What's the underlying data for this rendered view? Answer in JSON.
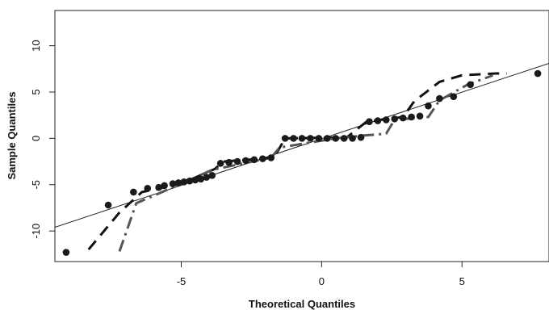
{
  "chart_data": {
    "type": "scatter",
    "title": "",
    "xlabel": "Theoretical Quantiles",
    "ylabel": "Sample Quantiles",
    "xlim": [
      -9.5,
      8.1
    ],
    "ylim": [
      -13.3,
      13.8
    ],
    "xticks": [
      -5,
      0,
      5
    ],
    "yticks": [
      -10,
      -5,
      0,
      5,
      10
    ],
    "grid": false,
    "colors": {
      "points": "#1a1a1a",
      "dash1": "#111111",
      "dash2": "#555555",
      "line": "#222222"
    },
    "reference_line": {
      "x": [
        -9.5,
        8.1
      ],
      "y": [
        -9.6,
        8.1
      ]
    },
    "series": [
      {
        "values": [
          {
            "x": -9.1,
            "y": -12.3
          },
          {
            "x": -7.6,
            "y": -7.2
          },
          {
            "x": -6.7,
            "y": -5.8
          },
          {
            "x": -6.2,
            "y": -5.4
          },
          {
            "x": -5.8,
            "y": -5.3
          },
          {
            "x": -5.6,
            "y": -5.1
          },
          {
            "x": -5.3,
            "y": -4.9
          },
          {
            "x": -5.1,
            "y": -4.8
          },
          {
            "x": -4.9,
            "y": -4.7
          },
          {
            "x": -4.7,
            "y": -4.6
          },
          {
            "x": -4.5,
            "y": -4.5
          },
          {
            "x": -4.3,
            "y": -4.4
          },
          {
            "x": -4.1,
            "y": -4.2
          },
          {
            "x": -3.9,
            "y": -4.0
          },
          {
            "x": -3.6,
            "y": -2.7
          },
          {
            "x": -3.3,
            "y": -2.6
          },
          {
            "x": -3.0,
            "y": -2.5
          },
          {
            "x": -2.7,
            "y": -2.4
          },
          {
            "x": -2.4,
            "y": -2.3
          },
          {
            "x": -2.1,
            "y": -2.2
          },
          {
            "x": -1.8,
            "y": -2.1
          },
          {
            "x": -1.3,
            "y": 0.0
          },
          {
            "x": -1.0,
            "y": 0.0
          },
          {
            "x": -0.7,
            "y": 0.0
          },
          {
            "x": -0.4,
            "y": 0.0
          },
          {
            "x": -0.1,
            "y": 0.0
          },
          {
            "x": 0.2,
            "y": 0.0
          },
          {
            "x": 0.5,
            "y": 0.0
          },
          {
            "x": 0.8,
            "y": 0.0
          },
          {
            "x": 1.1,
            "y": 0.0
          },
          {
            "x": 1.4,
            "y": 0.1
          },
          {
            "x": 1.7,
            "y": 1.8
          },
          {
            "x": 2.0,
            "y": 1.9
          },
          {
            "x": 2.3,
            "y": 2.0
          },
          {
            "x": 2.6,
            "y": 2.1
          },
          {
            "x": 2.9,
            "y": 2.2
          },
          {
            "x": 3.2,
            "y": 2.3
          },
          {
            "x": 3.5,
            "y": 2.4
          },
          {
            "x": 3.8,
            "y": 3.5
          },
          {
            "x": 4.2,
            "y": 4.3
          },
          {
            "x": 4.7,
            "y": 4.5
          },
          {
            "x": 5.3,
            "y": 5.8
          },
          {
            "x": 7.7,
            "y": 7.0
          }
        ]
      },
      {
        "style": "dashed",
        "values": [
          {
            "x": -8.3,
            "y": -12.0
          },
          {
            "x": -7.2,
            "y": -8.0
          },
          {
            "x": -6.4,
            "y": -5.8
          },
          {
            "x": -5.0,
            "y": -4.9
          },
          {
            "x": -3.8,
            "y": -3.3
          },
          {
            "x": -3.5,
            "y": -2.5
          },
          {
            "x": -1.7,
            "y": -2.1
          },
          {
            "x": -1.3,
            "y": 0.0
          },
          {
            "x": 0.9,
            "y": 0.1
          },
          {
            "x": 1.6,
            "y": 1.8
          },
          {
            "x": 2.9,
            "y": 2.3
          },
          {
            "x": 3.3,
            "y": 4.0
          },
          {
            "x": 4.2,
            "y": 6.1
          },
          {
            "x": 5.0,
            "y": 6.8
          },
          {
            "x": 6.2,
            "y": 7.0
          },
          {
            "x": 6.6,
            "y": 7.0
          }
        ]
      },
      {
        "style": "dash-dot",
        "values": [
          {
            "x": -7.2,
            "y": -12.2
          },
          {
            "x": -6.6,
            "y": -7.0
          },
          {
            "x": -5.0,
            "y": -4.9
          },
          {
            "x": -3.9,
            "y": -3.4
          },
          {
            "x": -1.8,
            "y": -2.1
          },
          {
            "x": -1.5,
            "y": -1.0
          },
          {
            "x": 0.5,
            "y": 0.0
          },
          {
            "x": 1.5,
            "y": 0.3
          },
          {
            "x": 2.3,
            "y": 0.5
          },
          {
            "x": 2.6,
            "y": 2.0
          },
          {
            "x": 3.8,
            "y": 2.3
          },
          {
            "x": 4.2,
            "y": 4.1
          },
          {
            "x": 5.2,
            "y": 5.8
          },
          {
            "x": 6.1,
            "y": 6.8
          }
        ]
      }
    ]
  }
}
